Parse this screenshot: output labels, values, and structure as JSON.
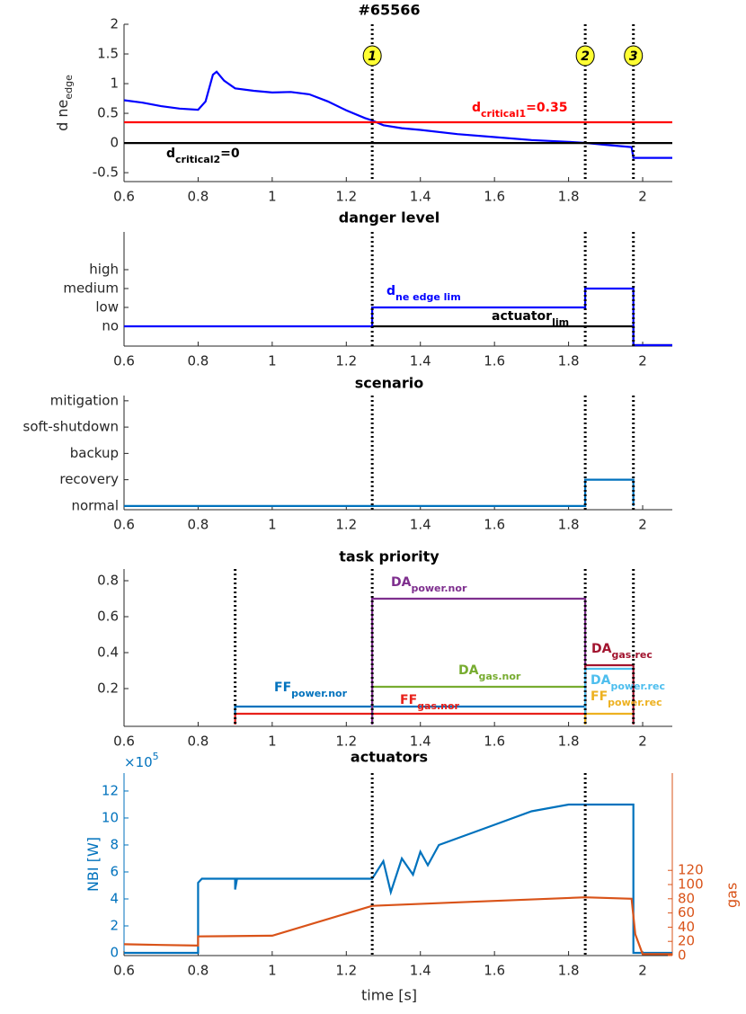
{
  "chart_data": [
    {
      "type": "line",
      "title": "#65566",
      "ylabel": "d ne",
      "ylabel_sub": "edge",
      "xlim": [
        0.6,
        2.08
      ],
      "xticks": [
        0.6,
        0.8,
        1,
        1.2,
        1.4,
        1.6,
        1.8,
        2
      ],
      "ylim": [
        -0.65,
        2
      ],
      "yticks": [
        -0.5,
        0,
        0.5,
        1,
        1.5,
        2
      ],
      "vlines": [
        1.27,
        1.845,
        1.975
      ],
      "event_labels": [
        "1",
        "2",
        "3"
      ],
      "series": [
        {
          "color": "#0000ff",
          "x": [
            0.6,
            0.65,
            0.7,
            0.75,
            0.8,
            0.82,
            0.84,
            0.85,
            0.87,
            0.9,
            0.95,
            1.0,
            1.05,
            1.1,
            1.15,
            1.2,
            1.25,
            1.27,
            1.3,
            1.35,
            1.4,
            1.5,
            1.6,
            1.7,
            1.8,
            1.85,
            1.9,
            1.97,
            1.975,
            2.08
          ],
          "values": [
            0.72,
            0.68,
            0.62,
            0.58,
            0.56,
            0.7,
            1.15,
            1.2,
            1.05,
            0.92,
            0.88,
            0.85,
            0.86,
            0.82,
            0.7,
            0.55,
            0.42,
            0.38,
            0.3,
            0.25,
            0.22,
            0.15,
            0.1,
            0.05,
            0.02,
            0.0,
            -0.03,
            -0.07,
            -0.25,
            -0.25
          ]
        },
        {
          "name": "d",
          "subscript": "critical1",
          "suffix": "=0.35",
          "color": "#ff0000",
          "x": [
            0.6,
            2.08
          ],
          "values": [
            0.35,
            0.35
          ]
        },
        {
          "name": "d",
          "subscript": "critical2",
          "suffix": "=0",
          "color": "#000000",
          "x": [
            0.6,
            2.08
          ],
          "values": [
            0,
            0
          ]
        }
      ]
    },
    {
      "type": "line",
      "title": "danger level",
      "xlim": [
        0.6,
        2.08
      ],
      "xticks": [
        0.6,
        0.8,
        1,
        1.2,
        1.4,
        1.6,
        1.8,
        2
      ],
      "ylim": [
        -1.05,
        5
      ],
      "yticks": [
        {
          "value": 0,
          "label": "no"
        },
        {
          "value": 1,
          "label": "low"
        },
        {
          "value": 2,
          "label": "medium"
        },
        {
          "value": 3,
          "label": "high"
        }
      ],
      "vlines": [
        1.27,
        1.845,
        1.975
      ],
      "series": [
        {
          "name": "actuator",
          "subscript": "lim",
          "color": "#000000",
          "x": [
            1.27,
            1.975,
            1.975,
            2.08
          ],
          "values": [
            0,
            0,
            -1,
            -1
          ]
        },
        {
          "name": "d",
          "subscript": "ne edge lim",
          "color": "#0000ff",
          "x": [
            0.6,
            1.27,
            1.27,
            1.845,
            1.845,
            1.975,
            1.975,
            2.08
          ],
          "values": [
            0,
            0,
            1,
            1,
            2,
            2,
            -1,
            -1
          ]
        }
      ]
    },
    {
      "type": "line",
      "title": "scenario",
      "xlim": [
        0.6,
        2.08
      ],
      "xticks": [
        0.6,
        0.8,
        1,
        1.2,
        1.4,
        1.6,
        1.8,
        2
      ],
      "ylim": [
        -0.14,
        4.2
      ],
      "yticks": [
        {
          "value": 0,
          "label": "normal"
        },
        {
          "value": 1,
          "label": "recovery"
        },
        {
          "value": 2,
          "label": "backup"
        },
        {
          "value": 3,
          "label": "soft-shutdown"
        },
        {
          "value": 4,
          "label": "mitigation"
        }
      ],
      "vlines": [
        1.27,
        1.845,
        1.975
      ],
      "series": [
        {
          "color": "#0072bd",
          "x": [
            0.6,
            1.845,
            1.845,
            1.975,
            1.975
          ],
          "values": [
            0,
            0,
            1,
            1,
            0
          ]
        }
      ]
    },
    {
      "type": "line",
      "title": "task priority",
      "xlim": [
        0.6,
        2.08
      ],
      "xticks": [
        0.6,
        0.8,
        1,
        1.2,
        1.4,
        1.6,
        1.8,
        2
      ],
      "ylim": [
        -0.01,
        0.865
      ],
      "yticks": [
        0.2,
        0.4,
        0.6,
        0.8
      ],
      "vlines": [
        0.9,
        1.27,
        1.845,
        1.975
      ],
      "series": [
        {
          "name": "FF",
          "subscript": "power.nor",
          "color": "#0072bd",
          "x": [
            0.9,
            0.9,
            1.845
          ],
          "values": [
            0,
            0.1,
            0.1
          ]
        },
        {
          "name": "FF",
          "subscript": "gas.nor",
          "color": "#e8201a",
          "x": [
            0.9,
            0.9,
            1.845
          ],
          "values": [
            0,
            0.06,
            0.06
          ]
        },
        {
          "name": "DA",
          "subscript": "gas.nor",
          "color": "#77ac30",
          "x": [
            1.27,
            1.27,
            1.845
          ],
          "values": [
            0,
            0.21,
            0.21
          ]
        },
        {
          "name": "DA",
          "subscript": "power.nor",
          "color": "#7e2f8e",
          "x": [
            1.27,
            1.27,
            1.845,
            1.845
          ],
          "values": [
            0,
            0.7,
            0.7,
            0
          ]
        },
        {
          "name": "DA",
          "subscript": "gas.rec",
          "color": "#a2142f",
          "x": [
            1.845,
            1.845,
            1.975,
            1.975
          ],
          "values": [
            0,
            0.33,
            0.33,
            0
          ]
        },
        {
          "name": "DA",
          "subscript": "power.rec",
          "color": "#4dbeee",
          "x": [
            1.845,
            1.845,
            1.975
          ],
          "values": [
            0,
            0.31,
            0.31
          ]
        },
        {
          "name": "FF",
          "subscript": "power.rec",
          "color": "#edb120",
          "x": [
            1.845,
            1.845,
            1.975
          ],
          "values": [
            0,
            0.06,
            0.06
          ]
        }
      ]
    },
    {
      "type": "line",
      "title": "actuators",
      "xlabel": "time [s]",
      "ylabel": "NBI [W]",
      "y2label": "gas",
      "multiplier": "×10",
      "multiplier_exp": "5",
      "xlim": [
        0.6,
        2.08
      ],
      "xticks": [
        0.6,
        0.8,
        1,
        1.2,
        1.4,
        1.6,
        1.8,
        2
      ],
      "ylim": [
        -0.2,
        13.33
      ],
      "yticks": [
        0,
        2,
        4,
        6,
        8,
        10,
        12
      ],
      "y2lim": [
        0,
        257
      ],
      "y2ticks": [
        0,
        20,
        40,
        60,
        80,
        100,
        120
      ],
      "vlines": [
        1.27,
        1.845
      ],
      "series": [
        {
          "color": "#0072bd",
          "x": [
            0.6,
            0.8,
            0.8,
            0.81,
            0.85,
            0.9,
            0.9,
            0.905,
            1.0,
            1.27,
            1.3,
            1.32,
            1.35,
            1.38,
            1.4,
            1.42,
            1.45,
            1.5,
            1.55,
            1.6,
            1.7,
            1.8,
            1.975,
            1.975,
            2.08
          ],
          "values": [
            0,
            0,
            5.2,
            5.5,
            5.5,
            5.5,
            4.7,
            5.5,
            5.5,
            5.5,
            6.8,
            4.5,
            7.0,
            5.8,
            7.5,
            6.5,
            8.0,
            8.5,
            9.0,
            9.5,
            10.5,
            11,
            11,
            0,
            0
          ]
        },
        {
          "color": "#d95319",
          "axis": "y2",
          "x": [
            0.6,
            0.7,
            0.8,
            0.8,
            1.0,
            1.27,
            1.5,
            1.845,
            1.97,
            1.98,
            2.0,
            2.08
          ],
          "values": [
            16,
            15,
            14,
            27,
            28,
            70,
            75,
            82,
            80,
            30,
            2,
            2
          ]
        }
      ]
    }
  ]
}
